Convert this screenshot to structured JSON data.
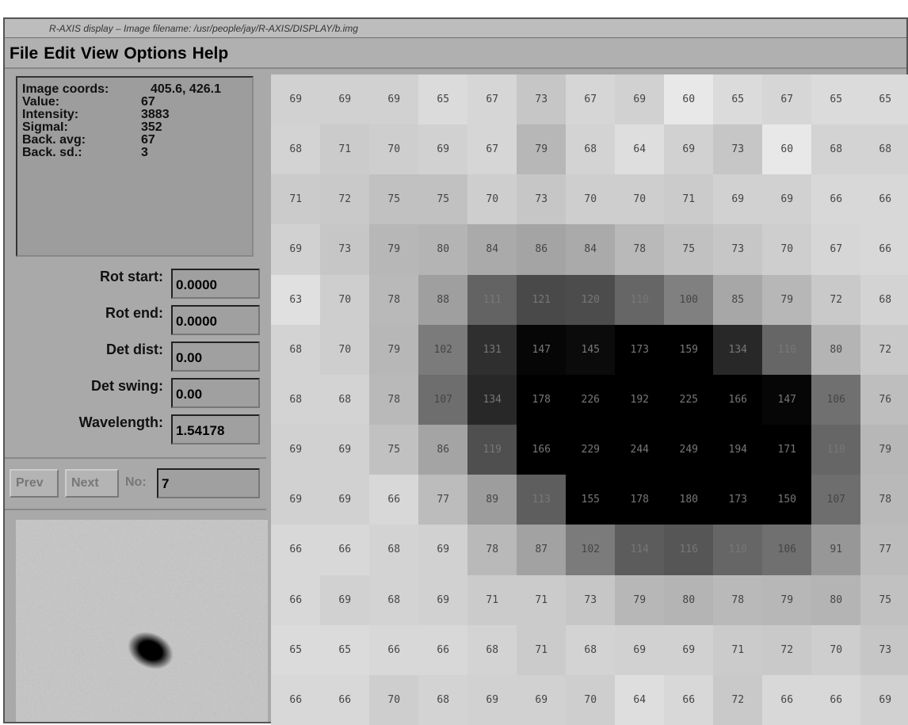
{
  "window": {
    "title": "R-AXIS display – Image filename: /usr/people/jay/R-AXIS/DISPLAY/b.img"
  },
  "menu": [
    "File",
    "Edit",
    "View",
    "Options",
    "Help"
  ],
  "info": [
    {
      "label": "Image coords:",
      "value": "405.6, 426.1"
    },
    {
      "label": "Value:",
      "value": "67"
    },
    {
      "label": "Intensity:",
      "value": "3883"
    },
    {
      "label": "SigmaI:",
      "value": "352"
    },
    {
      "label": "Back. avg:",
      "value": "67"
    },
    {
      "label": "Back. sd.:",
      "value": "3"
    }
  ],
  "fields": [
    {
      "label": "Rot start:",
      "value": "0.0000"
    },
    {
      "label": "Rot end:",
      "value": "0.0000"
    },
    {
      "label": "Det dist:",
      "value": "0.00"
    },
    {
      "label": "Det swing:",
      "value": "0.00"
    },
    {
      "label": "Wavelength:",
      "value": "1.54178"
    }
  ],
  "nav": {
    "prev": "Prev",
    "next": "Next",
    "no_label": "No:",
    "no_value": "7"
  },
  "grid": {
    "rows": [
      [
        69,
        69,
        69,
        65,
        67,
        73,
        67,
        69,
        60,
        65,
        67,
        65,
        65
      ],
      [
        68,
        71,
        70,
        69,
        67,
        79,
        68,
        64,
        69,
        73,
        60,
        68,
        68
      ],
      [
        71,
        72,
        75,
        75,
        70,
        73,
        70,
        70,
        71,
        69,
        69,
        66,
        66
      ],
      [
        69,
        73,
        79,
        80,
        84,
        86,
        84,
        78,
        75,
        73,
        70,
        67,
        66
      ],
      [
        63,
        70,
        78,
        88,
        111,
        121,
        120,
        110,
        100,
        85,
        79,
        72,
        68
      ],
      [
        68,
        70,
        79,
        102,
        131,
        147,
        145,
        173,
        159,
        134,
        110,
        80,
        72
      ],
      [
        68,
        68,
        78,
        107,
        134,
        178,
        226,
        192,
        225,
        166,
        147,
        106,
        76
      ],
      [
        69,
        69,
        75,
        86,
        119,
        166,
        229,
        244,
        249,
        194,
        171,
        110,
        79
      ],
      [
        69,
        69,
        66,
        77,
        89,
        113,
        155,
        178,
        180,
        173,
        150,
        107,
        78
      ],
      [
        66,
        66,
        68,
        69,
        78,
        87,
        102,
        114,
        116,
        110,
        106,
        91,
        77
      ],
      [
        66,
        69,
        68,
        69,
        71,
        71,
        73,
        79,
        80,
        78,
        79,
        80,
        75
      ],
      [
        65,
        65,
        66,
        66,
        68,
        71,
        68,
        69,
        69,
        71,
        72,
        70,
        73
      ],
      [
        66,
        66,
        70,
        68,
        69,
        69,
        70,
        64,
        66,
        72,
        66,
        66,
        69
      ]
    ]
  }
}
